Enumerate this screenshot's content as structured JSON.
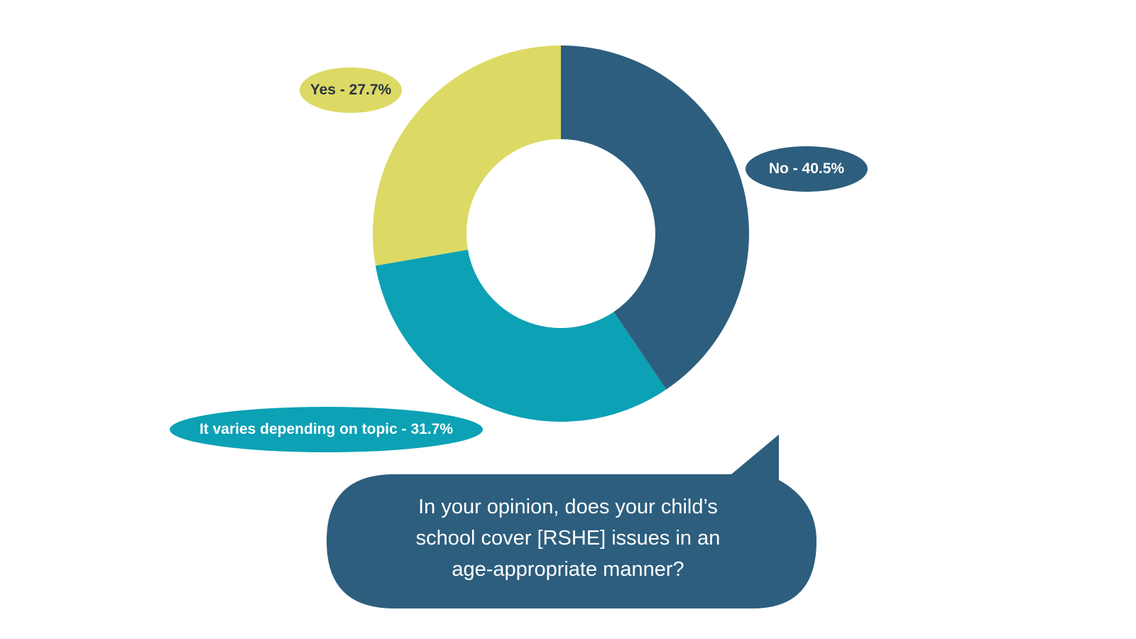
{
  "chart_data": {
    "type": "pie",
    "donut": true,
    "slices": [
      {
        "label": "No - 40.5%",
        "value": 40.5,
        "color": "#2d5e7e",
        "text_color": "#ffffff"
      },
      {
        "label": "It varies depending on topic - 31.7%",
        "value": 31.7,
        "color": "#0ca1b5",
        "text_color": "#ffffff"
      },
      {
        "label": "Yes - 27.7%",
        "value": 27.7,
        "color": "#dcda64",
        "text_color": "#2b3344"
      }
    ],
    "question": "In your opinion, does your child’s\nschool cover [RSHE] issues in an\nage-appropriate manner?"
  },
  "callout": {
    "color": "#2d5e7e",
    "text_color": "#ffffff"
  }
}
